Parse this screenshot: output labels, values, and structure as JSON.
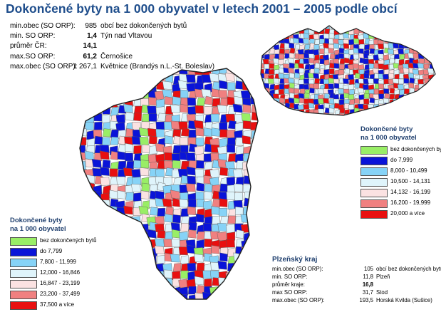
{
  "title": "Dokončené byty na 1 000 obyvatel v letech 2001 – 2005 podle obcí",
  "stats": [
    {
      "label": "min.obec (SO ORP):",
      "value": "985",
      "note": "obcí bez dokončených bytů",
      "bold": false
    },
    {
      "label": "min. SO ORP:",
      "value": "1,4",
      "note": "Týn nad Vltavou",
      "bold": true
    },
    {
      "label": "průměr ČR:",
      "value": "14,1",
      "note": "",
      "bold": true
    },
    {
      "label": "max.SO ORP:",
      "value": "61,2",
      "note": "Černošice",
      "bold": true
    },
    {
      "label": "max.obec (SO ORP):",
      "value": "1 267,1",
      "note": "Květnice (Brandýs n.L.-St. Boleslav)",
      "bold": false
    }
  ],
  "legend_cz": {
    "title_line1": "Dokončené byty",
    "title_line2": "na 1 000 obyvatel",
    "items": [
      {
        "label": "bez dokončených bytů",
        "color": "#99ee66"
      },
      {
        "label": "do 7,999",
        "color": "#0a14d8"
      },
      {
        "label": "8,000 - 10,499",
        "color": "#86d3f7"
      },
      {
        "label": "10,500 - 14,131",
        "color": "#dff4fb"
      },
      {
        "label": "14,132 - 16,199",
        "color": "#fbe2e2"
      },
      {
        "label": "16,200 - 19,999",
        "color": "#f08080"
      },
      {
        "label": "20,000 a více",
        "color": "#e81010"
      }
    ]
  },
  "legend_plzen": {
    "title_line1": "Dokončené byty",
    "title_line2": "na 1 000 obyvatel",
    "items": [
      {
        "label": "bez dokončených bytů",
        "color": "#99ee66"
      },
      {
        "label": "do 7,799",
        "color": "#0a14d8"
      },
      {
        "label": "7,800 - 11,999",
        "color": "#86d3f7"
      },
      {
        "label": "12,000 - 16,846",
        "color": "#dff4fb"
      },
      {
        "label": "16,847 - 23,199",
        "color": "#fbe2e2"
      },
      {
        "label": "23,200 - 37,499",
        "color": "#f08080"
      },
      {
        "label": "37,500 a více",
        "color": "#e81010"
      }
    ]
  },
  "region": {
    "title": "Plzeňský kraj",
    "rows": [
      {
        "label": "min.obec (SO ORP):",
        "value": "105",
        "note": "obcí bez dokončených bytů",
        "bold": false
      },
      {
        "label": "min. SO ORP:",
        "value": "11,8",
        "note": "Plzeň",
        "bold": false
      },
      {
        "label": "průměr kraje:",
        "value": "16,8",
        "note": "",
        "bold": true
      },
      {
        "label": "max SO ORP:",
        "value": "31,7",
        "note": "Stod",
        "bold": false
      },
      {
        "label": "max.obec (SO ORP):",
        "value": "193,5",
        "note": "Horská Kvilda (Sušice)",
        "bold": false
      }
    ]
  }
}
